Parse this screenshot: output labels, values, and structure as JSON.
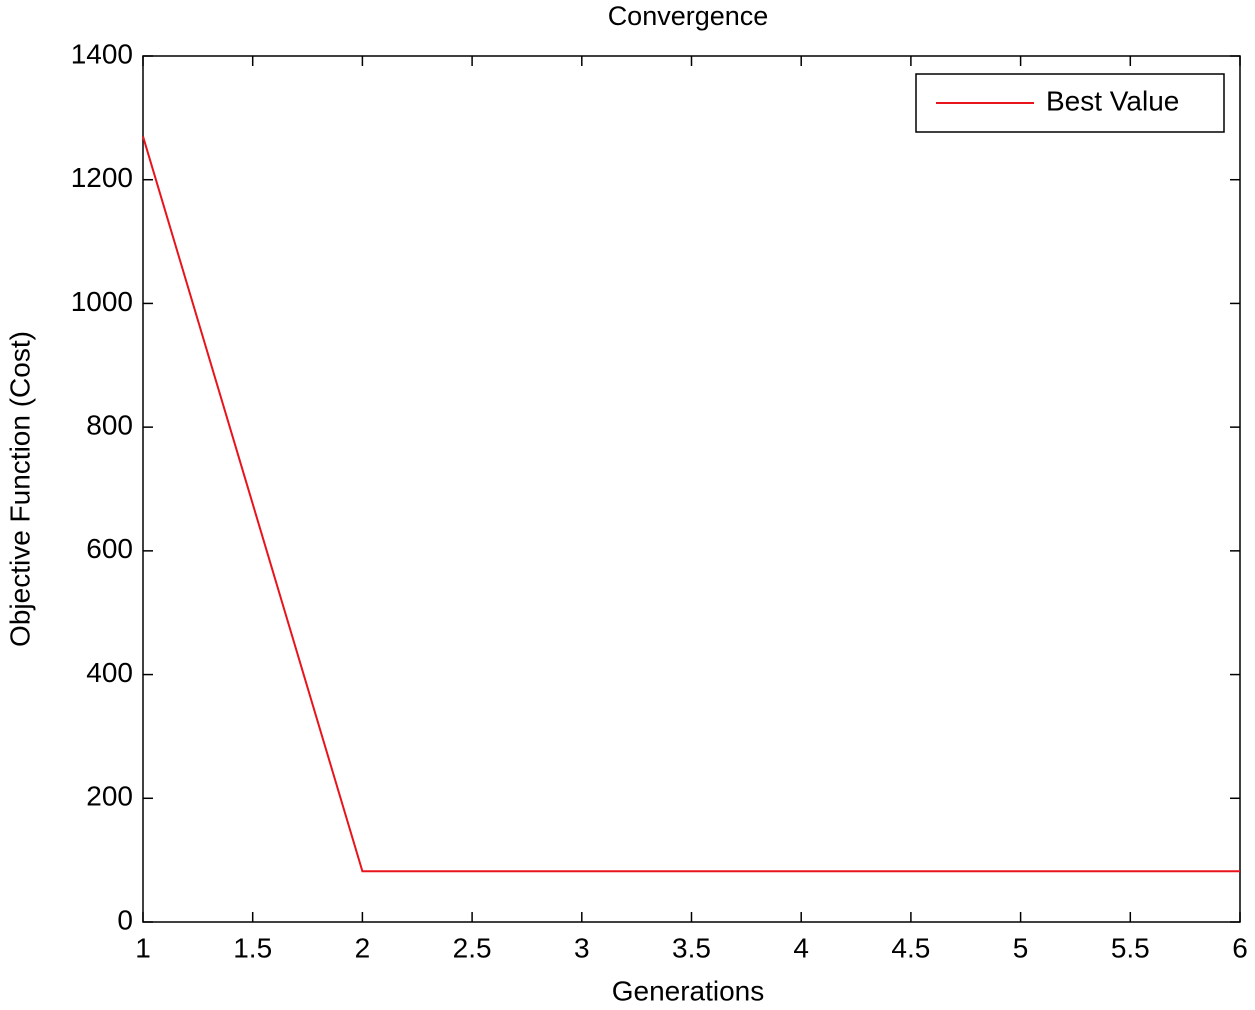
{
  "chart_data": {
    "type": "line",
    "title": "Convergence",
    "x_label": "Generations",
    "y_label": "Objective Function (Cost)",
    "x": [
      1,
      2,
      3,
      4,
      5,
      6
    ],
    "series": [
      {
        "name": "Best Value",
        "color": "#e8141c",
        "values": [
          1270,
          82,
          82,
          82,
          82,
          82
        ]
      }
    ],
    "xlim": [
      1,
      6
    ],
    "xticks": [
      1,
      1.5,
      2,
      2.5,
      3,
      3.5,
      4,
      4.5,
      5,
      5.5,
      6
    ],
    "ylim": [
      0,
      1400
    ],
    "yticks": [
      0,
      200,
      400,
      600,
      800,
      1000,
      1200,
      1400
    ],
    "grid": false,
    "legend": "top-right"
  }
}
